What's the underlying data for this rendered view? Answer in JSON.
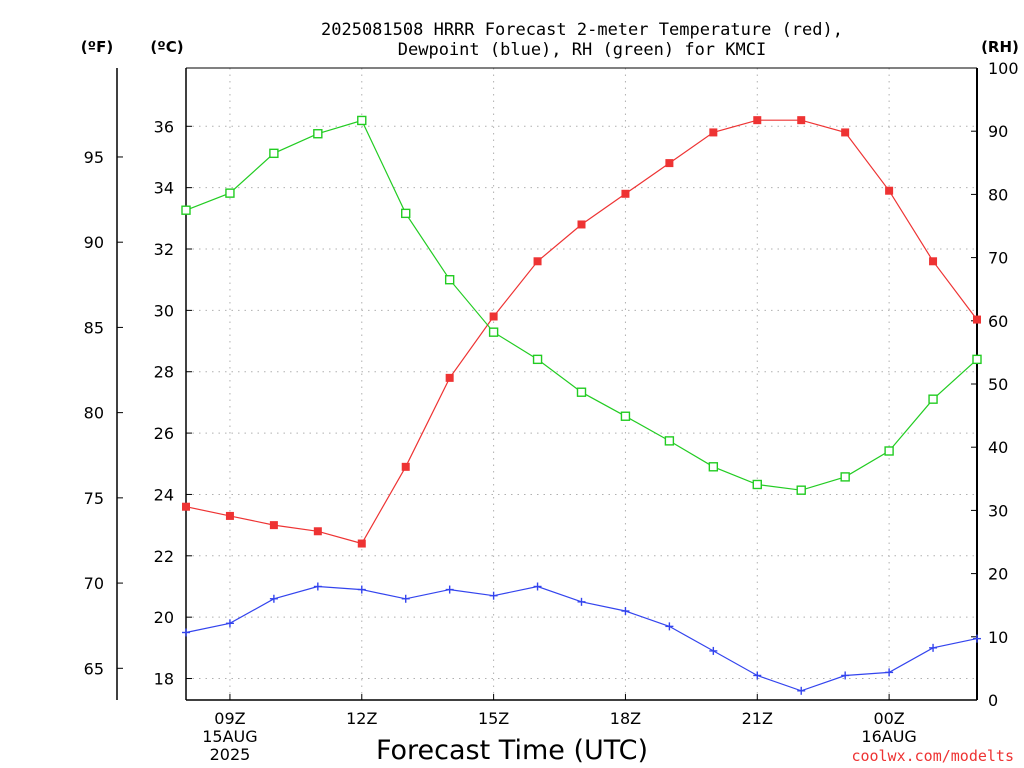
{
  "chart_data": {
    "type": "line",
    "title_line1": "2025081508 HRRR Forecast 2-meter Temperature (red),",
    "title_line2": "Dewpoint (blue), RH (green) for KMCI",
    "xlabel": "Forecast Time (UTC)",
    "left_outer_unit": "(ºF)",
    "left_inner_unit": "(ºC)",
    "right_unit": "(RH)",
    "credit": "coolwx.com/modelts",
    "hours": [
      8,
      9,
      10,
      11,
      12,
      13,
      14,
      15,
      16,
      17,
      18,
      19,
      20,
      21,
      22,
      23,
      24,
      25,
      26
    ],
    "x_ticks": [
      {
        "hour": 9,
        "label": "09Z",
        "sub1": "15AUG",
        "sub2": "2025"
      },
      {
        "hour": 12,
        "label": "12Z",
        "sub1": "",
        "sub2": ""
      },
      {
        "hour": 15,
        "label": "15Z",
        "sub1": "",
        "sub2": ""
      },
      {
        "hour": 18,
        "label": "18Z",
        "sub1": "",
        "sub2": ""
      },
      {
        "hour": 21,
        "label": "21Z",
        "sub1": "",
        "sub2": ""
      },
      {
        "hour": 24,
        "label": "00Z",
        "sub1": "16AUG",
        "sub2": ""
      }
    ],
    "xlim": [
      8,
      26
    ],
    "ylim_c": [
      17.3,
      37.9
    ],
    "y_ticks_c": [
      "18",
      "20",
      "22",
      "24",
      "26",
      "28",
      "30",
      "32",
      "34",
      "36"
    ],
    "y_ticks_f": [
      "65",
      "70",
      "75",
      "80",
      "85",
      "90",
      "95"
    ],
    "ylim_rh": [
      0,
      100
    ],
    "y_ticks_rh": [
      "0",
      "10",
      "20",
      "30",
      "40",
      "50",
      "60",
      "70",
      "80",
      "90",
      "100"
    ],
    "grid": true,
    "series": [
      {
        "name": "Temperature",
        "color": "#ee3333",
        "marker": "filled-square",
        "axis": "c",
        "values": [
          23.6,
          23.3,
          23.0,
          22.8,
          22.4,
          24.9,
          27.8,
          29.8,
          31.6,
          32.8,
          33.8,
          34.8,
          35.8,
          36.2,
          36.2,
          35.8,
          33.9,
          31.6,
          29.7
        ]
      },
      {
        "name": "Dewpoint",
        "color": "#3344ee",
        "marker": "plus",
        "axis": "c",
        "values": [
          19.5,
          19.8,
          20.6,
          21.0,
          20.9,
          20.6,
          20.9,
          20.7,
          21.0,
          20.5,
          20.2,
          19.7,
          18.9,
          18.1,
          17.6,
          18.1,
          18.2,
          19.0,
          19.3
        ]
      },
      {
        "name": "RH",
        "color": "#22cc22",
        "marker": "open-square",
        "axis": "rh",
        "values": [
          77.5,
          80.2,
          86.5,
          89.6,
          91.7,
          77.0,
          66.5,
          58.2,
          53.9,
          48.7,
          44.9,
          41.0,
          36.9,
          34.1,
          33.2,
          35.3,
          39.4,
          47.6,
          53.9
        ]
      }
    ]
  }
}
